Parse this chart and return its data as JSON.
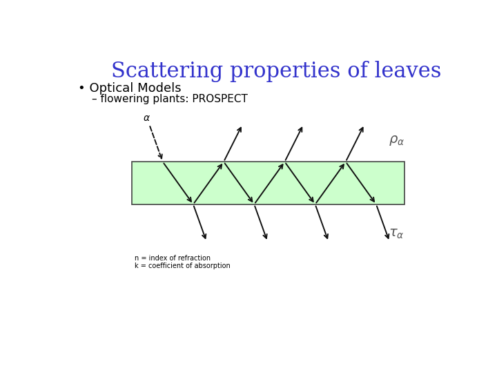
{
  "title": "Scattering properties of leaves",
  "title_color": "#3333cc",
  "title_fontsize": 22,
  "bullet1": "• Optical Models",
  "bullet2": "– flowering plants: PROSPECT",
  "bg_color": "#ffffff",
  "rect_color": "#ccffcc",
  "rect_edge_color": "#444444",
  "annotation_n": "n = index of refraction",
  "annotation_k": "k = coefficient of absorption",
  "arrow_color": "#111111",
  "arrow_lw": 1.4
}
